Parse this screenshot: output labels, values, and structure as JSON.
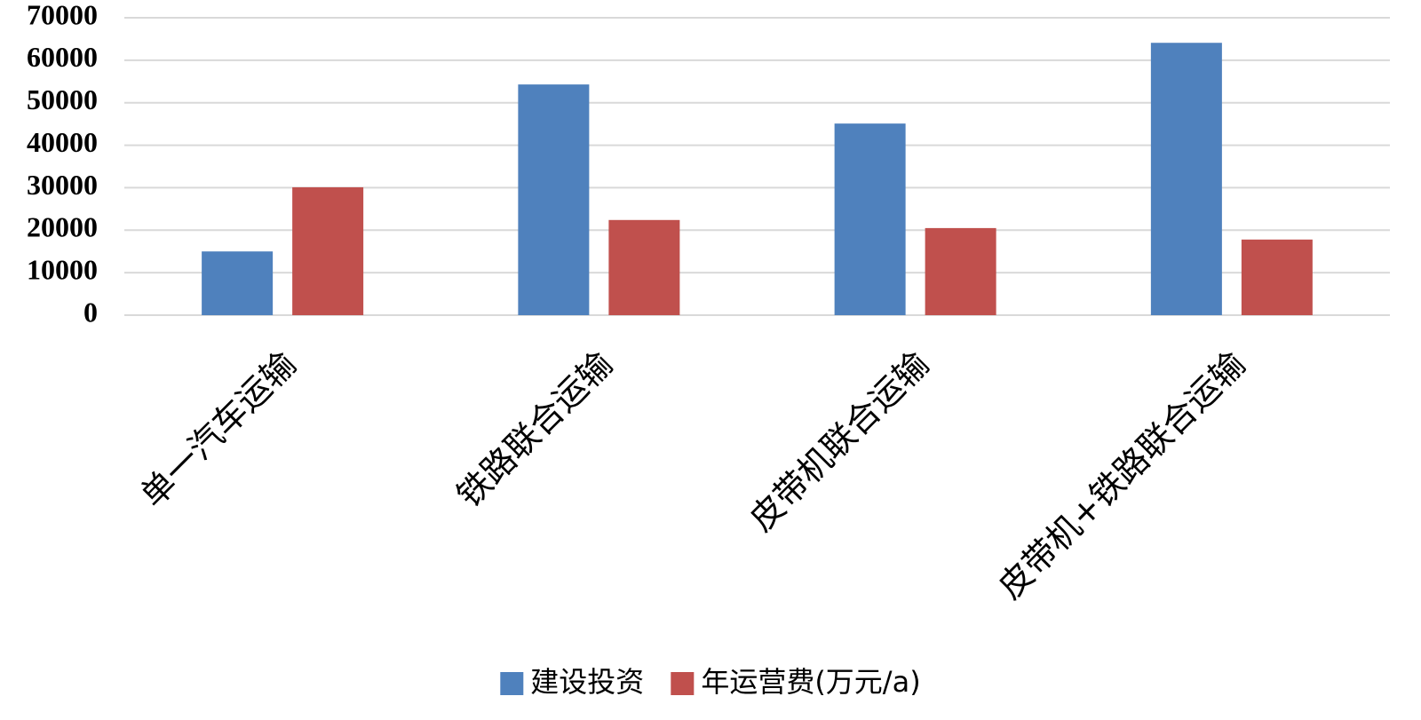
{
  "chart_data": {
    "type": "bar",
    "categories": [
      "单一汽车运输",
      "铁路联合运输",
      "皮带机联合运输",
      "皮带机+铁路联合运输"
    ],
    "series": [
      {
        "name": "建设投资",
        "color": "#4f81bd",
        "values": [
          15000,
          54300,
          45100,
          64100
        ]
      },
      {
        "name": "年运营费(万元/a)",
        "color": "#c0504d",
        "values": [
          30100,
          22400,
          20500,
          17800
        ]
      }
    ],
    "ylim": [
      0,
      70000
    ],
    "yticks": [
      0,
      10000,
      20000,
      30000,
      40000,
      50000,
      60000,
      70000
    ],
    "grid": true,
    "legend": "bottom"
  }
}
